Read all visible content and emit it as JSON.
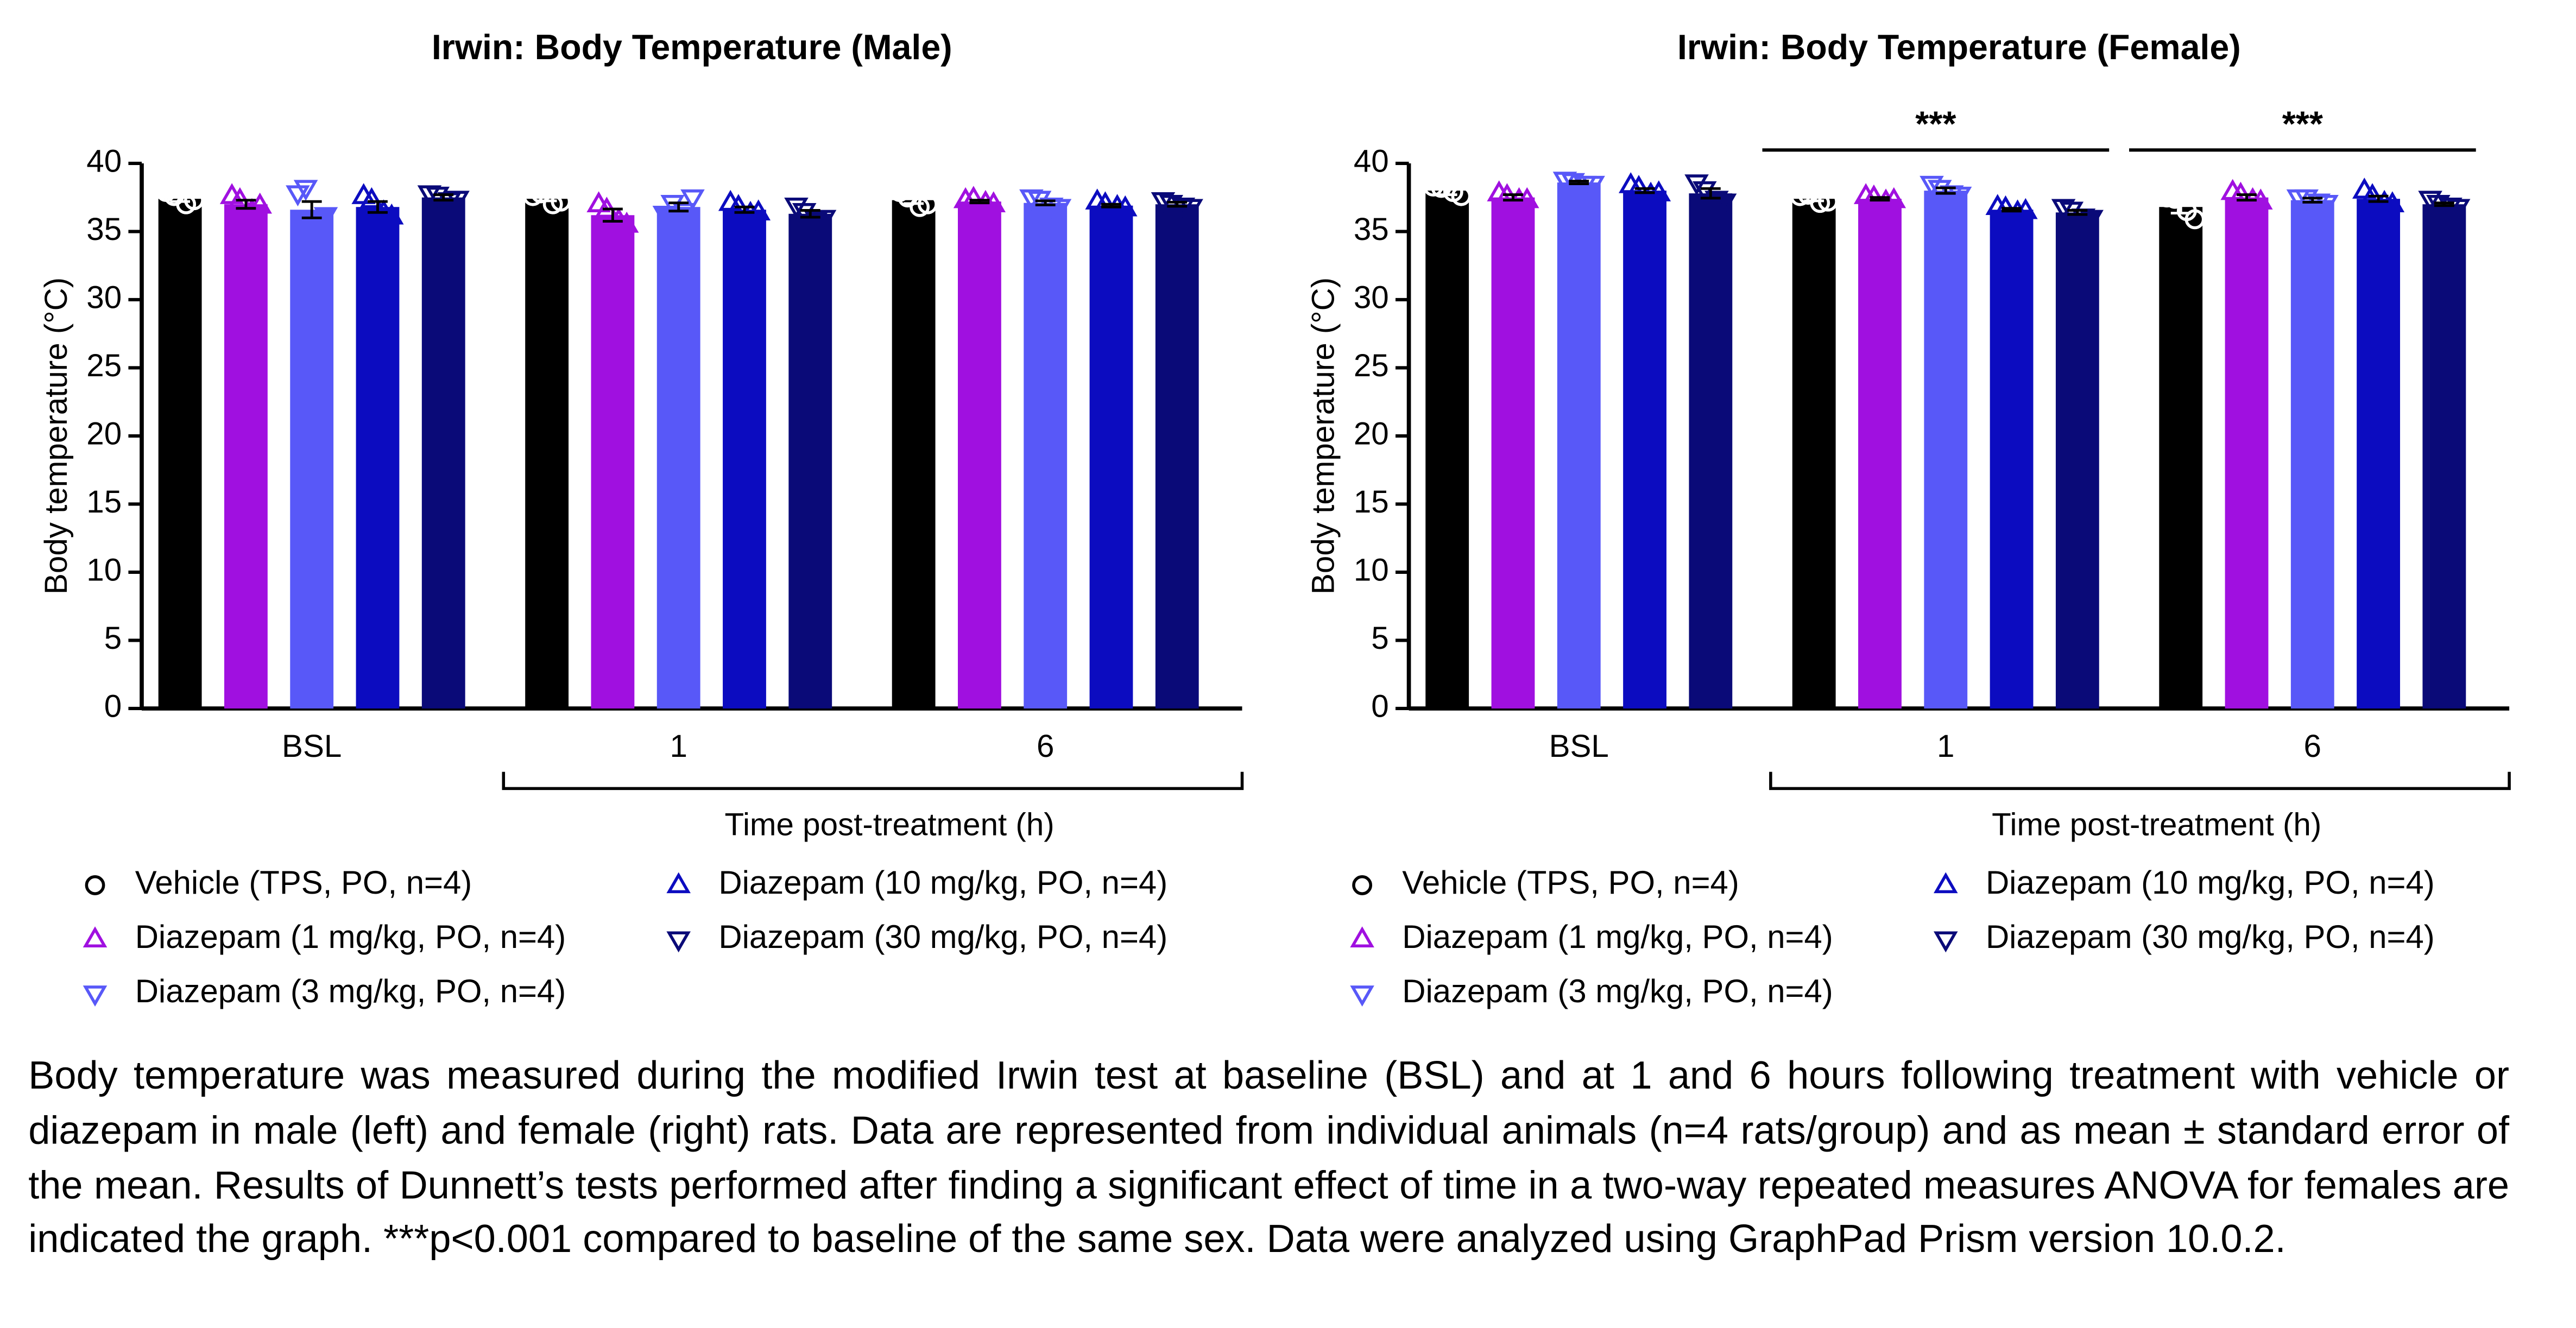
{
  "chart_data": [
    {
      "type": "bar",
      "title": "Irwin: Body Temperature (Male)",
      "ylabel": "Body temperature (°C)",
      "xlabel": "Time post-treatment (h)",
      "categories": [
        "BSL",
        "1",
        "6"
      ],
      "ylim": [
        0,
        40
      ],
      "yticks": [
        0,
        5,
        10,
        15,
        20,
        25,
        30,
        35,
        40
      ],
      "series": [
        {
          "name": "Vehicle (TPS, PO, n=4)",
          "color": "#000000",
          "marker": "circle",
          "values": [
            37.4,
            37.4,
            37.3
          ],
          "errors": [
            0.2,
            0.15,
            0.25
          ],
          "points": [
            [
              37.9,
              37.3,
              37.6,
              37.0
            ],
            [
              37.6,
              37.2,
              37.8,
              37.0
            ],
            [
              37.9,
              37.0,
              37.5,
              36.8
            ]
          ]
        },
        {
          "name": "Diazepam (1 mg/kg, PO, n=4)",
          "color": "#a010e0",
          "marker": "triangle-up",
          "values": [
            37.0,
            36.2,
            37.2
          ],
          "errors": [
            0.3,
            0.45,
            0.1
          ],
          "points": [
            [
              37.6,
              36.9,
              37.3,
              36.5
            ],
            [
              37.0,
              35.5,
              36.6,
              35.8
            ],
            [
              37.3,
              37.0,
              37.4,
              37.1
            ]
          ]
        },
        {
          "name": "Diazepam (3 mg/kg, PO, n=4)",
          "color": "#5858f8",
          "marker": "triangle-down",
          "values": [
            36.6,
            36.8,
            37.1
          ],
          "errors": [
            0.6,
            0.3,
            0.15
          ],
          "points": [
            [
              37.8,
              36.2,
              38.2,
              35.8
            ],
            [
              36.3,
              37.5,
              37.1,
              36.5
            ],
            [
              37.5,
              36.8,
              37.4,
              36.9
            ]
          ]
        },
        {
          "name": "Diazepam (10 mg/kg, PO, n=4)",
          "color": "#0c0cc0",
          "marker": "triangle-up",
          "values": [
            36.8,
            36.6,
            36.9
          ],
          "errors": [
            0.4,
            0.2,
            0.1
          ],
          "points": [
            [
              37.6,
              36.1,
              37.3,
              36.4
            ],
            [
              37.1,
              36.4,
              36.8,
              36.3
            ],
            [
              37.2,
              36.7,
              37.0,
              36.8
            ]
          ]
        },
        {
          "name": "Diazepam (30 mg/kg, PO, n=4)",
          "color": "#0a0a78",
          "marker": "triangle-down",
          "values": [
            37.5,
            36.3,
            37.0
          ],
          "errors": [
            0.2,
            0.25,
            0.15
          ],
          "points": [
            [
              37.8,
              37.4,
              37.7,
              37.3
            ],
            [
              36.9,
              36.0,
              36.5,
              35.9
            ],
            [
              37.3,
              36.8,
              37.1,
              36.9
            ]
          ]
        }
      ],
      "significance": []
    },
    {
      "type": "bar",
      "title": "Irwin: Body Temperature (Female)",
      "ylabel": "Body temperature (°C)",
      "xlabel": "Time post-treatment (h)",
      "categories": [
        "BSL",
        "1",
        "6"
      ],
      "ylim": [
        0,
        40
      ],
      "yticks": [
        0,
        5,
        10,
        15,
        20,
        25,
        30,
        35,
        40
      ],
      "series": [
        {
          "name": "Vehicle (TPS, PO, n=4)",
          "color": "#000000",
          "marker": "circle",
          "values": [
            38.0,
            37.4,
            36.8
          ],
          "errors": [
            0.3,
            0.15,
            0.45
          ],
          "points": [
            [
              38.3,
              37.6,
              38.2,
              37.9
            ],
            [
              37.6,
              37.2,
              37.7,
              37.1
            ],
            [
              37.5,
              35.9,
              37.4,
              36.5
            ]
          ]
        },
        {
          "name": "Diazepam (1 mg/kg, PO, n=4)",
          "color": "#a010e0",
          "marker": "triangle-up",
          "values": [
            37.5,
            37.4,
            37.5
          ],
          "errors": [
            0.2,
            0.1,
            0.2
          ],
          "points": [
            [
              37.8,
              37.3,
              37.6,
              37.3
            ],
            [
              37.6,
              37.3,
              37.5,
              37.2
            ],
            [
              37.9,
              37.2,
              37.7,
              37.3
            ]
          ]
        },
        {
          "name": "Diazepam (3 mg/kg, PO, n=4)",
          "color": "#5858f8",
          "marker": "triangle-down",
          "values": [
            38.6,
            38.0,
            37.3
          ],
          "errors": [
            0.1,
            0.2,
            0.15
          ],
          "points": [
            [
              38.8,
              38.5,
              38.7,
              38.5
            ],
            [
              38.5,
              37.7,
              38.2,
              37.8
            ],
            [
              37.5,
              37.1,
              37.5,
              37.2
            ]
          ]
        },
        {
          "name": "Diazepam (10 mg/kg, PO, n=4)",
          "color": "#0c0cc0",
          "marker": "triangle-up",
          "values": [
            38.0,
            36.6,
            37.4
          ],
          "errors": [
            0.15,
            0.1,
            0.2
          ],
          "points": [
            [
              38.4,
              37.8,
              38.2,
              37.7
            ],
            [
              36.8,
              36.5,
              36.7,
              36.4
            ],
            [
              38.0,
              37.0,
              37.6,
              37.1
            ]
          ]
        },
        {
          "name": "Diazepam (30 mg/kg, PO, n=4)",
          "color": "#0a0a78",
          "marker": "triangle-down",
          "values": [
            37.8,
            36.4,
            37.0
          ],
          "errors": [
            0.35,
            0.15,
            0.1
          ],
          "points": [
            [
              38.6,
              37.2,
              38.1,
              37.4
            ],
            [
              36.8,
              36.0,
              36.6,
              36.1
            ],
            [
              37.4,
              36.8,
              37.1,
              36.9
            ]
          ]
        }
      ],
      "significance": [
        {
          "category": 1,
          "label": "***"
        },
        {
          "category": 2,
          "label": "***"
        }
      ]
    }
  ],
  "caption": "Body temperature was measured during the modified Irwin test at baseline (BSL) and at 1 and 6 hours following treatment with vehicle or diazepam in male (left) and female (right) rats. Data are represented from individual animals (n=4 rats/group) and as mean ± standard error of the mean. Results of Dunnett’s tests performed after finding a significant effect of time in a two-way repeated measures ANOVA for females are indicated the graph. ***p<0.001 compared to baseline of the same sex. Data were analyzed using GraphPad Prism version 10.0.2."
}
